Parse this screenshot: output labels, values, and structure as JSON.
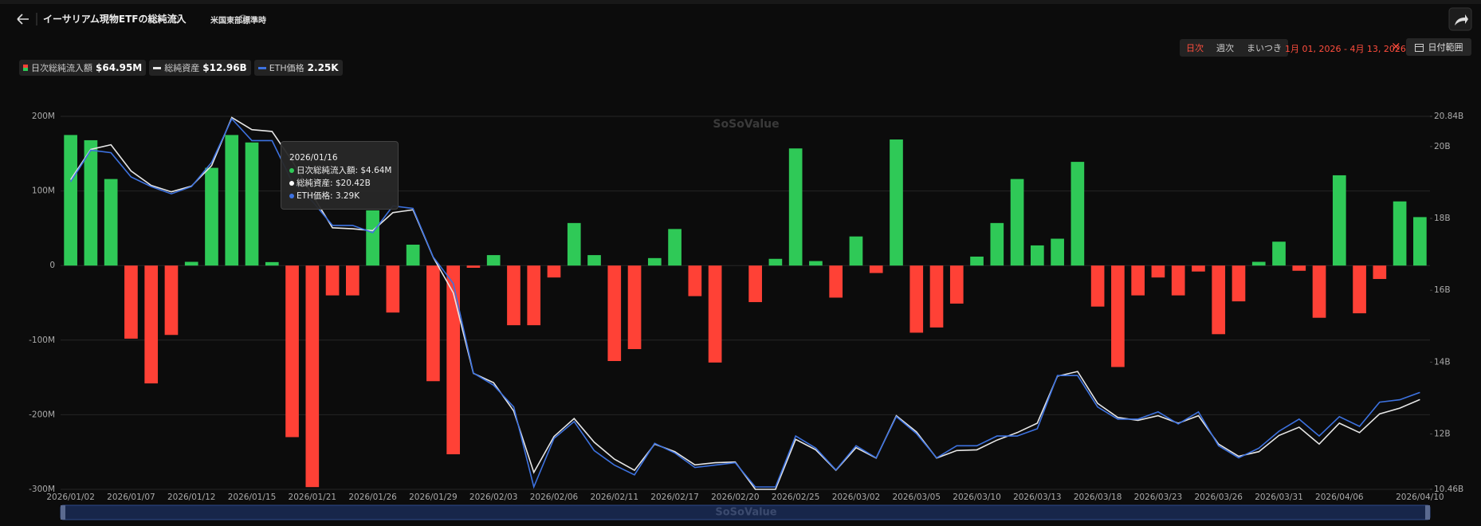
{
  "header": {
    "title": "イーサリアム現物ETFの総純流入",
    "timezone": "米国東部標準時",
    "periods": [
      "日次",
      "週次",
      "まいつき"
    ],
    "date_range": "1月 01, 2026 - 4月 13, 2026",
    "date_button": "日付範囲"
  },
  "legend": [
    {
      "name": "日次総純流入額",
      "latest": "$64.95M"
    },
    {
      "name": "総純資産",
      "latest": "$12.96B"
    },
    {
      "name": "ETH価格",
      "latest": "2.25K"
    }
  ],
  "tooltip": {
    "date": "2026/01/16",
    "lines": [
      "日次総純流入額: $4.64M",
      "総純資産: $20.42B",
      "ETH価格: 3.29K"
    ]
  },
  "watermark": "SoSoValue",
  "chart_data": {
    "type": "bar",
    "categories": [
      "2026/01/02",
      null,
      null,
      "2026/01/07",
      null,
      null,
      "2026/01/12",
      null,
      null,
      "2026/01/15",
      null,
      null,
      "2026/01/21",
      null,
      null,
      "2026/01/26",
      null,
      null,
      "2026/01/29",
      null,
      null,
      "2026/02/03",
      null,
      null,
      "2026/02/06",
      null,
      null,
      "2026/02/11",
      null,
      null,
      "2026/02/17",
      null,
      null,
      "2026/02/20",
      null,
      null,
      "2026/02/25",
      null,
      null,
      "2026/03/02",
      null,
      null,
      "2026/03/05",
      null,
      null,
      "2026/03/10",
      null,
      null,
      "2026/03/13",
      null,
      null,
      "2026/03/18",
      null,
      null,
      "2026/03/23",
      null,
      null,
      "2026/03/26",
      null,
      null,
      "2026/03/31",
      null,
      null,
      "2026/04/06",
      null,
      null,
      null,
      "2026/04/10"
    ],
    "series": [
      {
        "name": "日次総純流入額",
        "type": "bar",
        "color": "#2fc957",
        "negative_color": "#ff4136",
        "values": [
          175,
          168,
          116,
          -98,
          -158,
          -93,
          5,
          131,
          175,
          165,
          4.64,
          -230,
          -297,
          -40,
          -40,
          74,
          -63,
          28,
          -155,
          -253,
          -3,
          14,
          -80,
          -80,
          -16,
          57,
          14,
          -128,
          -112,
          10,
          49,
          -41,
          -130,
          0,
          -49,
          9,
          157,
          6,
          -43,
          39,
          -10,
          169,
          -90,
          -83,
          -51,
          12,
          57,
          116,
          27,
          36,
          139,
          -55,
          -136,
          -40,
          -16,
          -40,
          -8,
          -92,
          -48,
          5,
          32,
          -7,
          -70,
          121,
          -64,
          -18,
          86,
          64.95
        ]
      },
      {
        "name": "総純資産",
        "type": "line",
        "axis": "y2",
        "color": "#e6e6e6",
        "values": [
          19.08,
          19.92,
          20.05,
          19.32,
          18.92,
          18.74,
          18.9,
          19.47,
          20.81,
          20.47,
          20.42,
          19.6,
          18.66,
          17.74,
          17.71,
          17.66,
          18.16,
          18.24,
          16.92,
          15.93,
          13.69,
          13.43,
          12.64,
          10.93,
          11.93,
          12.43,
          11.77,
          11.3,
          10.99,
          11.72,
          11.51,
          11.14,
          11.2,
          11.22,
          10.46,
          10.46,
          11.85,
          11.56,
          10.99,
          11.62,
          11.33,
          12.51,
          12.06,
          11.33,
          11.54,
          11.56,
          11.83,
          12.04,
          12.3,
          13.61,
          13.74,
          12.85,
          12.46,
          12.38,
          12.51,
          12.3,
          12.51,
          11.72,
          11.38,
          11.51,
          11.96,
          12.19,
          11.72,
          12.3,
          12.04,
          12.56,
          12.72,
          12.96
        ]
      },
      {
        "name": "ETH価格",
        "type": "line",
        "axis": "y3",
        "color": "#3d72e0",
        "values": [
          3.12,
          3.25,
          3.24,
          3.14,
          3.1,
          3.07,
          3.1,
          3.2,
          3.38,
          3.29,
          3.29,
          3.12,
          3.04,
          2.94,
          2.94,
          2.91,
          3.02,
          3.01,
          2.81,
          2.7,
          2.33,
          2.28,
          2.19,
          1.86,
          2.06,
          2.13,
          2.01,
          1.95,
          1.91,
          2.04,
          2.0,
          1.94,
          1.95,
          1.96,
          1.86,
          1.86,
          2.07,
          2.02,
          1.93,
          2.03,
          1.98,
          2.15,
          2.08,
          1.98,
          2.03,
          2.03,
          2.07,
          2.07,
          2.1,
          2.32,
          2.32,
          2.19,
          2.14,
          2.14,
          2.17,
          2.12,
          2.17,
          2.03,
          1.98,
          2.02,
          2.09,
          2.14,
          2.07,
          2.15,
          2.11,
          2.21,
          2.22,
          2.25
        ]
      }
    ],
    "ylim": [
      -300,
      200
    ],
    "yticks": [
      {
        "value": -300,
        "label": "-300M"
      },
      {
        "value": -200,
        "label": "-200M"
      },
      {
        "value": -100,
        "label": "-100M"
      },
      0,
      {
        "value": 100,
        "label": "100M"
      },
      {
        "value": 200,
        "label": "200M"
      }
    ],
    "y2lim": [
      10.46,
      20.84
    ],
    "y2ticks": [
      {
        "value": 10.46,
        "label": "10.46B"
      },
      {
        "value": 12,
        "label": "12B"
      },
      {
        "value": 14,
        "label": "14B"
      },
      {
        "value": 16,
        "label": "16B"
      },
      {
        "value": 18,
        "label": "18B"
      },
      {
        "value": 20,
        "label": "20B"
      },
      {
        "value": 20.84,
        "label": "20.84B"
      }
    ],
    "y3lim": [
      1.85,
      3.39
    ],
    "grid": true
  }
}
